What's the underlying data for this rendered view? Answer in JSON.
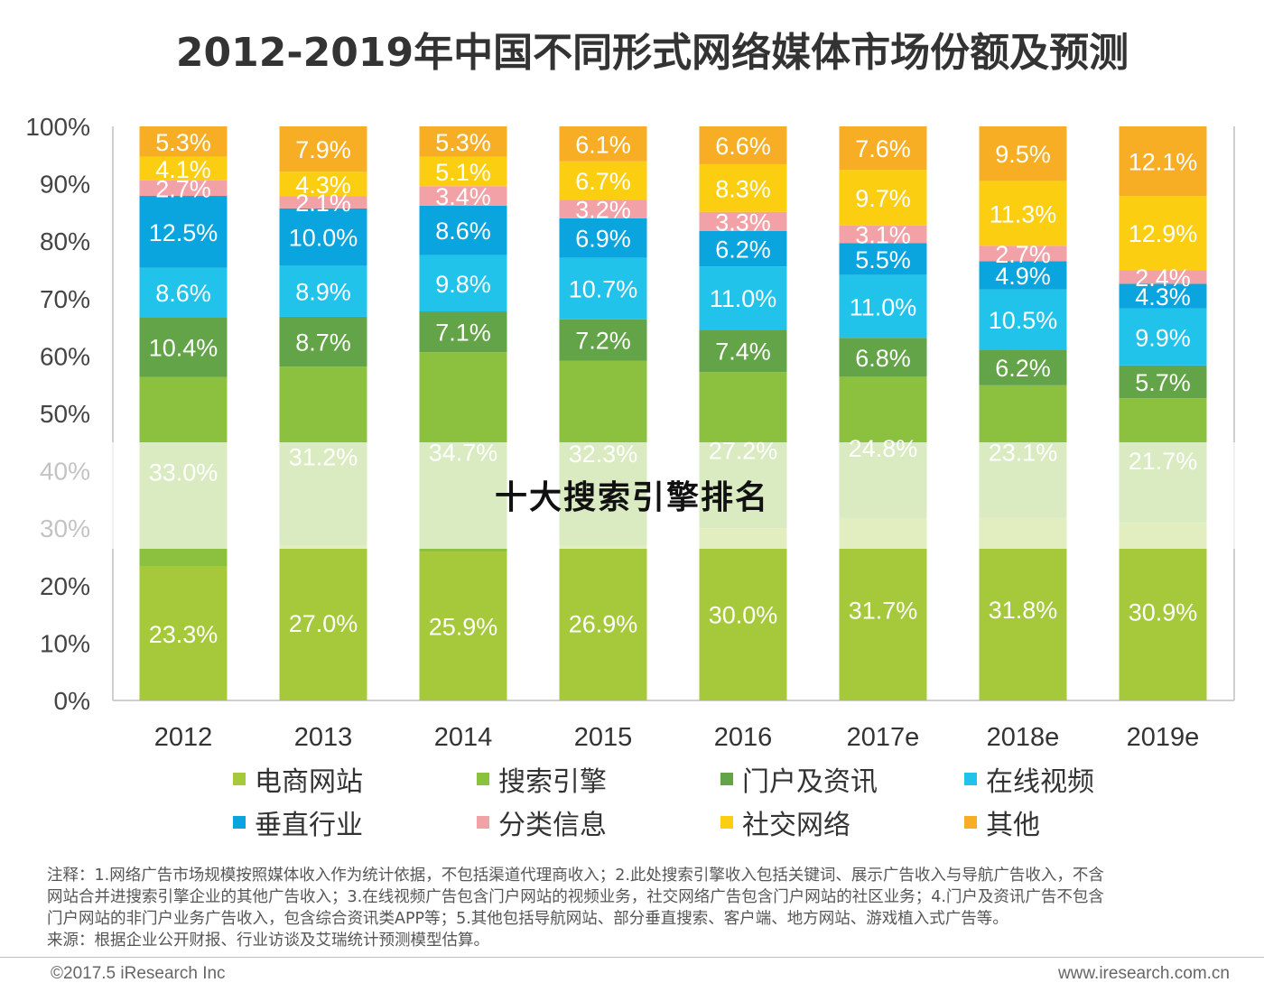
{
  "title": "2012-2019年中国不同形式网络媒体市场份额及预测",
  "chart_data": {
    "type": "bar",
    "stacked": true,
    "categories": [
      "2012",
      "2013",
      "2014",
      "2015",
      "2016",
      "2017e",
      "2018e",
      "2019e"
    ],
    "y_ticks": [
      "0%",
      "10%",
      "20%",
      "30%",
      "40%",
      "50%",
      "60%",
      "70%",
      "80%",
      "90%",
      "100%"
    ],
    "ylim": [
      0,
      100
    ],
    "series": [
      {
        "name": "电商网站",
        "color": "#a5c93a",
        "values": [
          23.3,
          27.0,
          25.9,
          26.9,
          30.0,
          31.7,
          31.8,
          30.9
        ],
        "labels": [
          "23.3%",
          "27.0%",
          "25.9%",
          "26.9%",
          "30.0%",
          "31.7%",
          "31.8%",
          "30.9%"
        ]
      },
      {
        "name": "搜索引擎",
        "color": "#8cc03f",
        "values": [
          33.0,
          31.2,
          34.7,
          32.3,
          27.2,
          24.8,
          23.1,
          21.7
        ],
        "labels": [
          "33.0%",
          "31.2%",
          "34.7%",
          "32.3%",
          "27.2%",
          "24.8%",
          "23.1%",
          "21.7%"
        ]
      },
      {
        "name": "门户及资讯",
        "color": "#62a447",
        "values": [
          10.4,
          8.7,
          7.1,
          7.2,
          7.4,
          6.8,
          6.2,
          5.7
        ],
        "labels": [
          "10.4%",
          "8.7%",
          "7.1%",
          "7.2%",
          "7.4%",
          "6.8%",
          "6.2%",
          "5.7%"
        ]
      },
      {
        "name": "在线视频",
        "color": "#21c3ea",
        "values": [
          8.6,
          8.9,
          9.8,
          10.7,
          11.0,
          11.0,
          10.5,
          9.9
        ],
        "labels": [
          "8.6%",
          "8.9%",
          "9.8%",
          "10.7%",
          "11.0%",
          "11.0%",
          "10.5%",
          "9.9%"
        ]
      },
      {
        "name": "垂直行业",
        "color": "#0aa5df",
        "values": [
          12.5,
          10.0,
          8.6,
          6.9,
          6.2,
          5.5,
          4.9,
          4.3
        ],
        "labels": [
          "12.5%",
          "10.0%",
          "8.6%",
          "6.9%",
          "6.2%",
          "5.5%",
          "4.9%",
          "4.3%"
        ]
      },
      {
        "name": "分类信息",
        "color": "#f2a1a6",
        "values": [
          2.7,
          2.1,
          3.4,
          3.2,
          3.3,
          3.1,
          2.7,
          2.4
        ],
        "labels": [
          "2.7%",
          "2.1%",
          "3.4%",
          "3.2%",
          "3.3%",
          "3.1%",
          "2.7%",
          "2.4%"
        ]
      },
      {
        "name": "社交网络",
        "color": "#fbce11",
        "values": [
          4.1,
          4.3,
          5.1,
          6.7,
          8.3,
          9.7,
          11.3,
          12.9
        ],
        "labels": [
          "4.1%",
          "4.3%",
          "5.1%",
          "6.7%",
          "8.3%",
          "9.7%",
          "11.3%",
          "12.9%"
        ]
      },
      {
        "name": "其他",
        "color": "#f8ae24",
        "values": [
          5.3,
          7.9,
          5.3,
          6.1,
          6.6,
          7.6,
          9.5,
          12.1
        ],
        "labels": [
          "5.3%",
          "7.9%",
          "5.3%",
          "6.1%",
          "6.6%",
          "7.6%",
          "9.5%",
          "12.1%"
        ]
      }
    ],
    "legend_placement": "bottom",
    "grid": false
  },
  "notes": {
    "line1": "注释：1.网络广告市场规模按照媒体收入作为统计依据，不包括渠道代理商收入；2.此处搜索引擎收入包括关键词、展示广告收入与导航广告收入，不含",
    "line2": "网站合并进搜索引擎企业的其他广告收入；3.在线视频广告包含门户网站的视频业务，社交网络广告包含门户网站的社区业务；4.门户及资讯广告不包含",
    "line3": "门户网站的非门户业务广告收入，包含综合资讯类APP等；5.其他包括导航网站、部分垂直搜索、客户端、地方网站、游戏植入式广告等。",
    "source": "来源：根据企业公开财报、行业访谈及艾瑞统计预测模型估算。"
  },
  "footer": {
    "left": "©2017.5 iResearch Inc",
    "right": "www.iresearch.com.cn"
  },
  "watermark": "十大搜索引擎排名"
}
